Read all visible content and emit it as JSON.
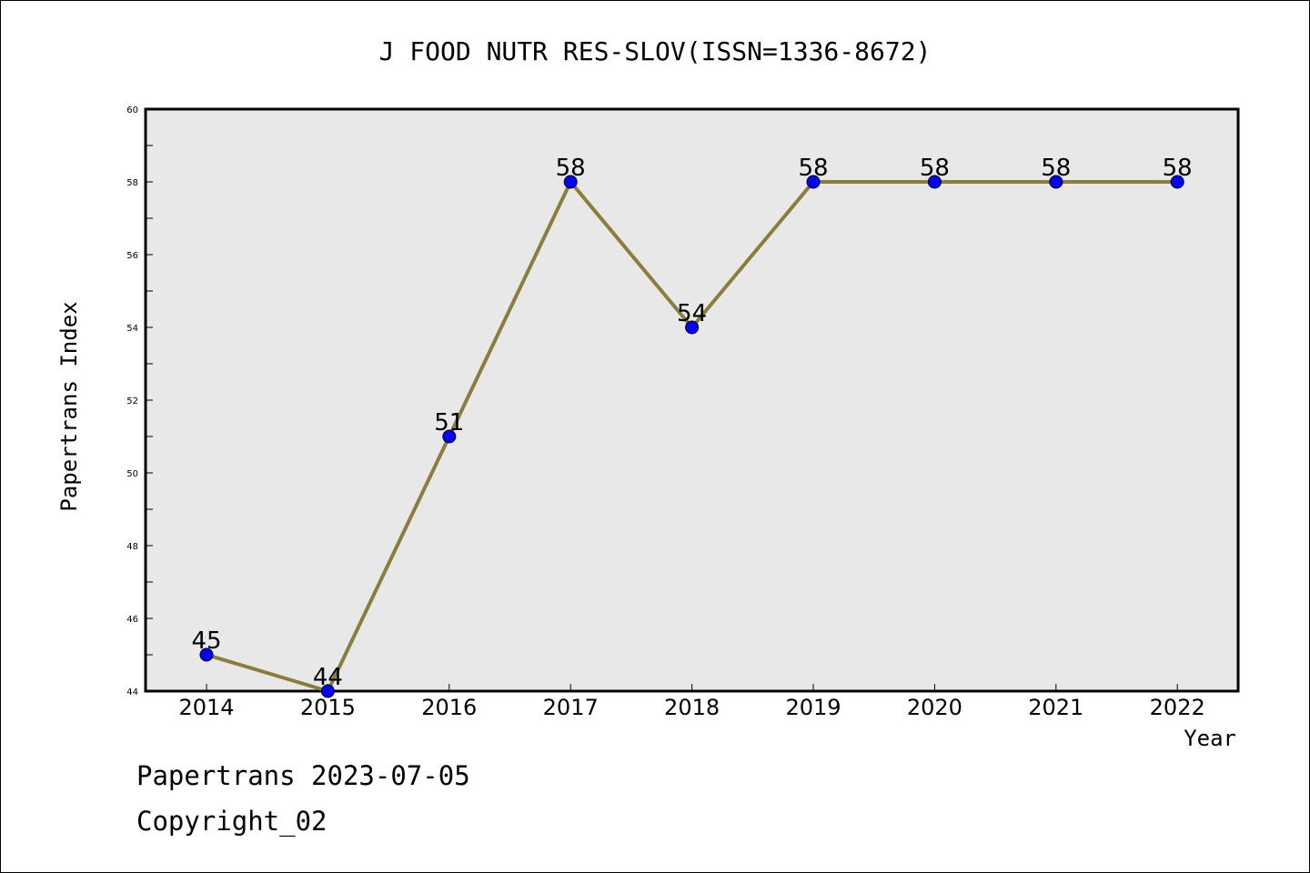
{
  "chart_data": {
    "type": "line",
    "title": "J FOOD NUTR RES-SLOV(ISSN=1336-8672)",
    "xlabel": "Year",
    "ylabel": "Papertrans Index",
    "x": [
      "2014",
      "2015",
      "2016",
      "2017",
      "2018",
      "2019",
      "2020",
      "2021",
      "2022"
    ],
    "values": [
      45,
      44,
      51,
      58,
      54,
      58,
      58,
      58,
      58
    ],
    "ylim": [
      44,
      60
    ],
    "yticks": [
      "44",
      "46",
      "48",
      "50",
      "52",
      "54",
      "56",
      "58",
      "60"
    ],
    "data_labels": [
      "45",
      "44",
      "51",
      "58",
      "54",
      "58",
      "58",
      "58",
      "58"
    ],
    "line_color": "#8b7d3a",
    "marker_color": "#0000ff",
    "plot_background": "#e8e8e8",
    "grid": false,
    "legend": "none"
  },
  "footer": {
    "date_line": "Papertrans 2023-07-05",
    "copyright": "Copyright_02"
  }
}
